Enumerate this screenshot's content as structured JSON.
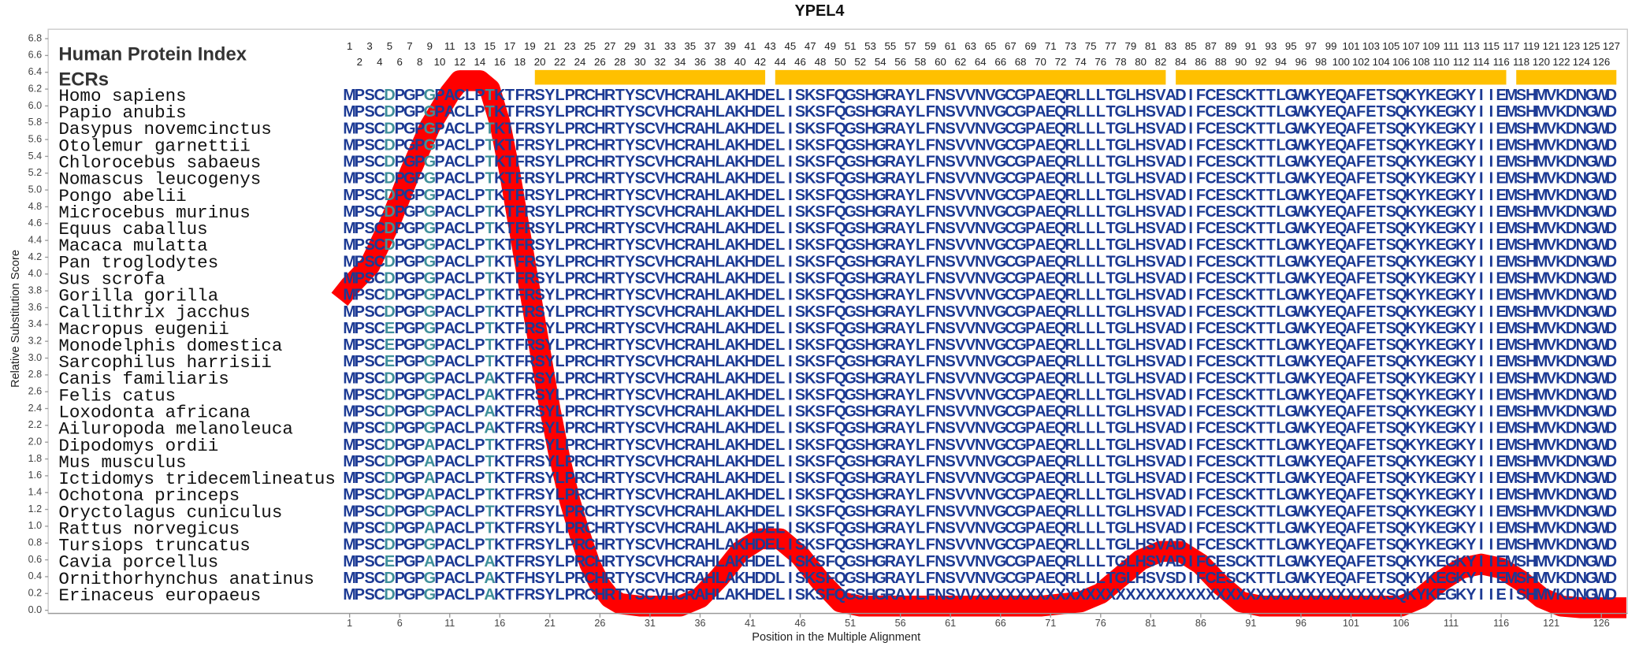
{
  "chart_data": {
    "type": "line",
    "title": "YPEL4",
    "y_label": "Relative Substitution Score",
    "x_label": "Position in the Multiple Alignment",
    "xlim": [
      -29.1,
      128.6
    ],
    "ylim": [
      0,
      6.8
    ],
    "xticks": [
      1,
      6,
      11,
      16,
      21,
      26,
      31,
      36,
      41,
      46,
      51,
      56,
      61,
      66,
      71,
      76,
      81,
      86,
      91,
      96,
      101,
      106,
      111,
      116,
      121,
      126
    ],
    "yticks": [
      {
        "value": 0,
        "label": "0.0"
      },
      0.2,
      0.4,
      0.6,
      0.8,
      {
        "value": 1,
        "label": "1.0"
      },
      1.2,
      1.4,
      1.6,
      1.8,
      {
        "value": 2,
        "label": "2.0"
      },
      2.2,
      2.4,
      2.6,
      2.8,
      {
        "value": 3,
        "label": "3.0"
      },
      3.2,
      3.4,
      3.6,
      3.8,
      {
        "value": 4,
        "label": "4.0"
      },
      4.2,
      4.4,
      4.6,
      4.8,
      {
        "value": 5,
        "label": "5.0"
      },
      5.2,
      5.4,
      5.6,
      5.8,
      {
        "value": 6,
        "label": "6.0"
      },
      6.2,
      6.4,
      6.6,
      6.8
    ],
    "series": [
      {
        "color": "#ff0000",
        "x": [
          0,
          1,
          3,
          5,
          7,
          9,
          11,
          12,
          13,
          14,
          15,
          16,
          17,
          18,
          19,
          20,
          21,
          22,
          23,
          24,
          25,
          26,
          27,
          28,
          30,
          32,
          34,
          36,
          38,
          40,
          42,
          44,
          46,
          48,
          50,
          52,
          60,
          70,
          74,
          76,
          78,
          80,
          82,
          84,
          86,
          88,
          90,
          92,
          100,
          106,
          108,
          110,
          112,
          114,
          116,
          118,
          120,
          122,
          124,
          128.5
        ],
        "values": [
          3.7,
          3.85,
          4.1,
          4.6,
          5.2,
          5.75,
          6.15,
          6.3,
          6.3,
          6.3,
          6.2,
          5.8,
          5.2,
          4.5,
          3.8,
          3.1,
          2.4,
          1.8,
          1.3,
          0.9,
          0.55,
          0.3,
          0.15,
          0.08,
          0.05,
          0.05,
          0.05,
          0.15,
          0.4,
          0.7,
          0.85,
          0.85,
          0.65,
          0.35,
          0.1,
          0.05,
          0.05,
          0.05,
          0.1,
          0.2,
          0.4,
          0.6,
          0.7,
          0.7,
          0.55,
          0.3,
          0.1,
          0.05,
          0.05,
          0.05,
          0.15,
          0.35,
          0.5,
          0.55,
          0.5,
          0.35,
          0.15,
          0.05,
          0.03,
          0.03
        ]
      }
    ],
    "human_index_label": "Human Protein Index",
    "human_index": [
      1,
      2,
      3,
      4,
      5,
      6,
      7,
      8,
      9,
      10,
      11,
      12,
      13,
      14,
      15,
      16,
      17,
      18,
      19,
      20,
      21,
      22,
      23,
      24,
      25,
      26,
      27,
      28,
      29,
      30,
      31,
      32,
      33,
      34,
      35,
      36,
      37,
      38,
      39,
      40,
      41,
      42,
      43,
      44,
      45,
      46,
      47,
      48,
      49,
      50,
      51,
      52,
      53,
      54,
      55,
      56,
      57,
      58,
      59,
      60,
      61,
      62,
      63,
      64,
      65,
      66,
      67,
      68,
      69,
      70,
      71,
      72,
      73,
      74,
      75,
      76,
      77,
      78,
      79,
      80,
      81,
      82,
      83,
      84,
      85,
      86,
      87,
      88,
      89,
      90,
      91,
      92,
      93,
      94,
      95,
      96,
      97,
      98,
      99,
      100,
      101,
      102,
      103,
      104,
      105,
      106,
      107,
      108,
      109,
      110,
      111,
      112,
      113,
      114,
      115,
      116,
      117,
      118,
      119,
      120,
      121,
      122,
      123,
      124,
      125,
      126,
      127
    ],
    "ecr_label": "ECRs",
    "ecr_color": "#ffc000",
    "ecrs": [
      [
        20,
        42
      ],
      [
        44,
        82
      ],
      [
        84,
        116
      ],
      [
        118,
        127
      ]
    ],
    "alignment": [
      {
        "name": "Homo sapiens",
        "sequence": "MPSCDPGPGPACLPTKTFRSYLPRCHRTYSCVHCRAHLAKHDELISKSFQGSHGRAYLFNSVVNVGCGPAEQRLLLTGLHSVADIFCESCKTTLGWKYEQAFETSQKYKEGKYIIEMSHMVKDNGWD"
      },
      {
        "name": "Papio anubis",
        "sequence": "MPSCDPGPGPACLPTKTFRSYLPRCHRTYSCVHCRAHLAKHDELISKSFQGSHGRAYLFNSVVNVGCGPAEQRLLLTGLHSVADIFCESCKTTLGWKYEQAFETSQKYKEGKYIIEMSHMVKDNGWD"
      },
      {
        "name": "Dasypus novemcinctus",
        "sequence": "MPSCDPGPGPACLPTKTFRSYLPRCHRTYSCVHCRAHLAKHDELISKSFQGSHGRAYLFNSVVNVGCGPAEQRLLLTGLHSVADIFCESCKTTLGWKYEQAFETSQKYKEGKYIIEMSHMVKDNGWD"
      },
      {
        "name": "Otolemur garnettii",
        "sequence": "MPSCDPGPGPACLPTKTFRSYLPRCHRTYSCVHCRAHLAKHDELISKSFQGSHGRAYLFNSVVNVGCGPAEQRLLLTGLHSVADIFCESCKTTLGWKYEQAFETSQKYKEGKYIIEMSHMVKDNGWD"
      },
      {
        "name": "Chlorocebus sabaeus",
        "sequence": "MPSCDPGPGPACLPTKTFRSYLPRCHRTYSCVHCRAHLAKHDELISKSFQGSHGRAYLFNSVVNVGCGPAEQRLLLTGLHSVADIFCESCKTTLGWKYEQAFETSQKYKEGKYIIEMSHMVKDNGWD"
      },
      {
        "name": "Nomascus leucogenys",
        "sequence": "MPSCDPGPGPACLPTKTFRSYLPRCHRTYSCVHCRAHLAKHDELISKSFQGSHGRAYLFNSVVNVGCGPAEQRLLLTGLHSVADIFCESCKTTLGWKYEQAFETSQKYKEGKYIIEMSHMVKDNGWD"
      },
      {
        "name": "Pongo abelii",
        "sequence": "MPSCDPGPGPACLPTKTFRSYLPRCHRTYSCVHCRAHLAKHDELISKSFQGSHGRAYLFNSVVNVGCGPAEQRLLLTGLHSVADIFCESCKTTLGWKYEQAFETSQKYKEGKYIIEMSHMVKDNGWD"
      },
      {
        "name": "Microcebus murinus",
        "sequence": "MPSCDPGPGPACLPTKTFRSYLPRCHRTYSCVHCRAHLAKHDELISKSFQGSHGRAYLFNSVVNVGCGPAEQRLLLTGLHSVADIFCESCKTTLGWKYEQAFETSQKYKEGKYIIEMSHMVKDNGWD"
      },
      {
        "name": "Equus caballus",
        "sequence": "MPSCDPGPGPACLPTKTFRSYLPRCHRTYSCVHCRAHLAKHDELISKSFQGSHGRAYLFNSVVNVGCGPAEQRLLLTGLHSVADIFCESCKTTLGWKYEQAFETSQKYKEGKYIIEMSHMVKDNGWD"
      },
      {
        "name": "Macaca mulatta",
        "sequence": "MPSCDPGPGPACLPTKTFRSYLPRCHRTYSCVHCRAHLAKHDELISKSFQGSHGRAYLFNSVVNVGCGPAEQRLLLTGLHSVADIFCESCKTTLGWKYEQAFETSQKYKEGKYIIEMSHMVKDNGWD"
      },
      {
        "name": "Pan troglodytes",
        "sequence": "MPSCDPGPGPACLPTKTFRSYLPRCHRTYSCVHCRAHLAKHDELISKSFQGSHGRAYLFNSVVNVGCGPAEQRLLLTGLHSVADIFCESCKTTLGWKYEQAFETSQKYKEGKYIIEMSHMVKDNGWD"
      },
      {
        "name": "Sus scrofa",
        "sequence": "MPSCDPGPGPACLPTKTFRSYLPRCHRTYSCVHCRAHLAKHDELISKSFQGSHGRAYLFNSVVNVGCGPAEQRLLLTGLHSVADIFCESCKTTLGWKYEQAFETSQKYKEGKYIIEMSHMVKDNGWD"
      },
      {
        "name": "Gorilla gorilla",
        "sequence": "MPSCDPGPGPACLPTKTFRSYLPRCHRTYSCVHCRAHLAKHDELISKSFQGSHGRAYLFNSVVNVGCGPAEQRLLLTGLHSVADIFCESCKTTLGWKYEQAFETSQKYKEGKYIIEMSHMVKDNGWD"
      },
      {
        "name": "Callithrix jacchus",
        "sequence": "MPSCDPGPGPACLPTKTFRSYLPRCHRTYSCVHCRAHLAKHDELISKSFQGSHGRAYLFNSVVNVGCGPAEQRLLLTGLHSVADIFCESCKTTLGWKYEQAFETSQKYKEGKYIIEMSHMVKDNGWD"
      },
      {
        "name": "Macropus eugenii",
        "sequence": "MPSCEPGPGPACLPTKTFRSYLPRCHRTYSCVHCRAHLAKHDELISKSFQGSHGRAYLFNSVVNVGCGPAEQRLLLTGLHSVADIFCESCKTTLGWKYEQAFETSQKYKEGKYIIEMSHMVKDNGWD"
      },
      {
        "name": "Monodelphis domestica",
        "sequence": "MPSCEPGPGPACLPTKTFRSYLPRCHRTYSCVHCRAHLAKHDELISKSFQGSHGRAYLFNSVVNVGCGPAEQRLLLTGLHSVADIFCESCKTTLGWKYEQAFETSQKYKEGKYIIEMSHMVKDNGWD"
      },
      {
        "name": "Sarcophilus harrisii",
        "sequence": "MPSCEPGPGPACLPTKTFRSYLPRCHRTYSCVHCRAHLAKHDELISKSFQGSHGRAYLFNSVVNVGCGPAEQRLLLTGLHSVADIFCESCKTTLGWKYEQAFETSQKYKEGKYIIEMSHMVKDNGWD"
      },
      {
        "name": "Canis familiaris",
        "sequence": "MPSCDPGPGPACLPAKTFRSYLPRCHRTYSCVHCRAHLAKHDELISKSFQGSHGRAYLFNSVVNVGCGPAEQRLLLTGLHSVADIFCESCKTTLGWKYEQAFETSQKYKEGKYIIEMSHMVKDNGWD"
      },
      {
        "name": "Felis catus",
        "sequence": "MPSCDPGPGPACLPAKTFRSYLPRCHRTYSCVHCRAHLAKHDELISKSFQGSHGRAYLFNSVVNVGCGPAEQRLLLTGLHSVADIFCESCKTTLGWKYEQAFETSQKYKEGKYIIEMSHMVKDNGWD"
      },
      {
        "name": "Loxodonta africana",
        "sequence": "MPSCDPGPGPACLPAKTFRSYLPRCHRTYSCVHCRAHLAKHDELISKSFQGSHGRAYLFNSVVNVGCGPAEQRLLLTGLHSVADIFCESCKTTLGWKYEQAFETSQKYKEGKYIIEMSHMVKDNGWD"
      },
      {
        "name": "Ailuropoda melanoleuca",
        "sequence": "MPSCDPGPGPACLPAKTFRSYLPRCHRTYSCVHCRAHLAKHDELISKSFQGSHGRAYLFNSVVNVGCGPAEQRLLLTGLHSVADIFCESCKTTLGWKYEQAFETSQKYKEGKYIIEMSHMVKDNGWD"
      },
      {
        "name": "Dipodomys ordii",
        "sequence": "MPSCDPGPAPACLPTKTFRSYLPRCHRTYSCVHCRAHLAKHDELISKSFQGSHGRAYLFNSVVNVGCGPAEQRLLLTGLHSVADIFCESCKTTLGWKYEQAFETSQKYKEGKYIIEMSHMVKDNGWD"
      },
      {
        "name": "Mus musculus",
        "sequence": "MPSCDPGPAPACLPTKTFRSYLPRCHRTYSCVHCRAHLAKHDELISKSFQGSHGRAYLFNSVVNVGCGPAEQRLLLTGLHSVADIFCESCKTTLGWKYEQAFETSQKYKEGKYIIEMSHMVKDNGWD"
      },
      {
        "name": "Ictidomys tridecemlineatus",
        "sequence": "MPSCDPGPAPACLPTKTFRSYLPRCHRTYSCVHCRAHLAKHDELISKSFQGSHGRAYLFNSVVNVGCGPAEQRLLLTGLHSVADIFCESCKTTLGWKYEQAFETSQKYKEGKYIIEMSHMVKDNGWD"
      },
      {
        "name": "Ochotona princeps",
        "sequence": "MPSCDPGPAPACLPTKTFRSYLPRCHRTYSCVHCRAHLAKHDELISKSFQGSHGRAYLFNSVVNVGCGPAEQRLLLTGLHSVADIFCESCKTTLGWKYEQAFETSQKYKEGKYIIEMSHMVKDNGWD"
      },
      {
        "name": "Oryctolagus cuniculus",
        "sequence": "MPSCDPGPGPACLPTKTFRSYLPRCHRTYSCVHCRAHLAKHDELISKSFQGSHGRAYLFNSVVNVGCGPAEQRLLLTGLHSVADIFCESCKTTLGWKYEQAFETSQKYKEGKYIIEMSHMVKDNGWD"
      },
      {
        "name": "Rattus norvegicus",
        "sequence": "MPSCDPGPAPACLPTKTFRSYLPRCHRTYSCVHCRAHLAKHDELISKSFQGSHGRAYLFNSVVNVGCGPAEQRLLLTGLHSVADIFCESCKTTLGWKYEQAFETSQKYKEGKYIIEMSHMVKDNGWD"
      },
      {
        "name": "Tursiops truncatus",
        "sequence": "MPSCDPGPGPACLPTKTFRSYLPRCHRTYSCVHCRAHLAKHDELISKSFQGSHGRAYLFNSVVNVGCGPAEQRLLLTGLHSVADIFCESCKTTLGWKYEQAFETSQKYKEGKYIIEMSHMVKDNGWD"
      },
      {
        "name": "Cavia porcellus",
        "sequence": "MPSCEPGPAPACLPAKTFRSYLPRCHRTYSCVHCRAHLAKHDELISKSFQGSHGRAYLFNSVVNVGCGPAEQRLLLTGLHSVADIFCESCKTTLGWKYEQAFETSQKYKEGKYIIEMSHMVKDNGWD"
      },
      {
        "name": "Ornithorhynchus anatinus",
        "sequence": "MPSCDPGPGPACLPAKTFHSYLPRCHRTYSCVHCRAHLAKHDDLISKSFQGSHGRAYLFNSVVNVGCGPAEQRLLLTGLHSVSDIFCESCKTTLGWKYEQAFETSQKYKEGKYIIEMSHMVKDNGWD"
      },
      {
        "name": "Erinaceus europaeus",
        "sequence": "MPSCDPGPGPACLPAKTFRSYLPRCHRTYSCVHCRAHLAKHDELISKSFQGSHGRAYLFNSVVXXXXXXXXXXXXXXXXXXXXXXXXXXXXXXXXXXXXXXXXXSQKYKEGKYIIEISHMVKDNGWD"
      }
    ]
  }
}
